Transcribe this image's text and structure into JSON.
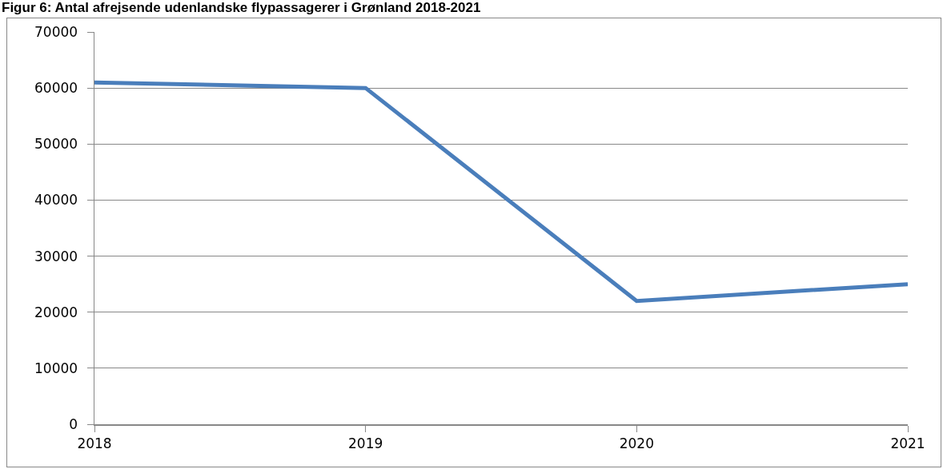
{
  "chart_data": {
    "type": "line",
    "title": "Figur 6: Antal afrejsende udenlandske flypassagerer i Grønland 2018-2021",
    "categories": [
      "2018",
      "2019",
      "2020",
      "2021"
    ],
    "series": [
      {
        "color": "#4a7ebb",
        "values": [
          61000,
          60000,
          22000,
          25000
        ]
      }
    ],
    "ylim": [
      0,
      70000
    ],
    "yticks": [
      0,
      10000,
      20000,
      30000,
      40000,
      50000,
      60000,
      70000
    ],
    "grid": "y",
    "marker": "none",
    "line_style": "solid"
  }
}
